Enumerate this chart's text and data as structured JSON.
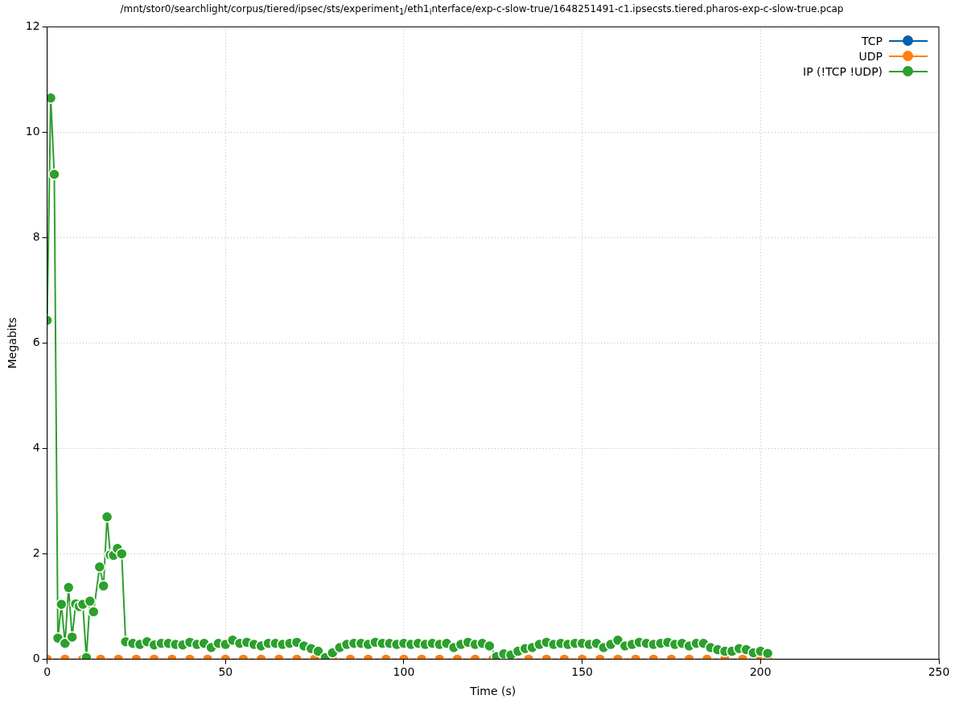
{
  "chart_data": {
    "type": "line",
    "title": "/mnt/stor0/searchlight/corpus/tiered/ipsec/sts/experiment$_{1}$/eth1$_{i}$nterface/exp-c-slow-true/1648251491-c1.ipsecsts.tiered.pharos-exp-c-slow-true.pcap",
    "xlabel": "Time (s)",
    "ylabel": "Megabits",
    "x": [
      0,
      5,
      10,
      15,
      20,
      25,
      30,
      35,
      40,
      45,
      50,
      55,
      60,
      65,
      70,
      75,
      80,
      85,
      90,
      95,
      100,
      105,
      110,
      115,
      120,
      125,
      130,
      135,
      140,
      145,
      150,
      155,
      160,
      165,
      170,
      175,
      180,
      185,
      190,
      195,
      200,
      202
    ],
    "xlim": [
      0,
      250
    ],
    "xticks": [
      0,
      50,
      100,
      150,
      200,
      250
    ],
    "ylim": [
      0,
      12
    ],
    "yticks": [
      0,
      2,
      4,
      6,
      8,
      10,
      12
    ],
    "grid": true,
    "legend": "top right",
    "marker": "circle",
    "line_style": "solid",
    "series": [
      {
        "name": "TCP",
        "color": "#0060ad",
        "values": [
          null,
          null,
          null,
          null,
          null,
          null,
          null,
          null,
          null,
          null,
          null,
          null,
          null,
          null,
          null,
          null,
          null,
          null,
          null,
          null,
          null,
          null,
          null,
          null,
          null,
          null,
          null,
          null,
          null,
          null,
          null,
          null,
          null,
          null,
          null,
          null,
          null,
          null,
          null,
          null,
          null,
          null
        ]
      },
      {
        "name": "UDP",
        "color": "#ff7f0e",
        "values": [
          0,
          0,
          0,
          0,
          0,
          0,
          0,
          0,
          0,
          0,
          0,
          0,
          0,
          0,
          0,
          0,
          0,
          0,
          0,
          0,
          0,
          0,
          0,
          0,
          0,
          0,
          0,
          0,
          0,
          0,
          0,
          0,
          0,
          0,
          0,
          0,
          0,
          0,
          0,
          0,
          0,
          0
        ]
      },
      {
        "name": "IP (!TCP  !UDP)",
        "color": "#2ca02c",
        "x": [
          0,
          1,
          2,
          3,
          4,
          5,
          6,
          7,
          8,
          9,
          10,
          11,
          12,
          13,
          14.7,
          15.8,
          16.8,
          17.7,
          18.6,
          19.7,
          20.9,
          22,
          24,
          26,
          28,
          30,
          32,
          34,
          36,
          38,
          40,
          42,
          44,
          46,
          48,
          50,
          52,
          54,
          56,
          58,
          60,
          62,
          64,
          66,
          68,
          70,
          72,
          74,
          76,
          78,
          80,
          82,
          84,
          86,
          88,
          90,
          92,
          94,
          96,
          98,
          100,
          102,
          104,
          106,
          108,
          110,
          112,
          114,
          116,
          118,
          120,
          122,
          124,
          126,
          128,
          130,
          132,
          134,
          136,
          138,
          140,
          142,
          144,
          146,
          148,
          150,
          152,
          154,
          156,
          158,
          160,
          162,
          164,
          166,
          168,
          170,
          172,
          174,
          176,
          178,
          180,
          182,
          184,
          186,
          188,
          190,
          192,
          194,
          196,
          198,
          200,
          202
        ],
        "values": [
          6.43,
          10.65,
          9.2,
          0.4,
          1.04,
          0.3,
          1.36,
          0.42,
          1.05,
          1.0,
          1.04,
          0.03,
          1.1,
          0.9,
          1.75,
          1.39,
          2.7,
          1.98,
          1.97,
          2.1,
          2.0,
          0.33,
          0.3,
          0.28,
          0.33,
          0.27,
          0.3,
          0.3,
          0.28,
          0.27,
          0.32,
          0.28,
          0.3,
          0.22,
          0.3,
          0.28,
          0.36,
          0.3,
          0.32,
          0.28,
          0.25,
          0.3,
          0.3,
          0.28,
          0.3,
          0.32,
          0.25,
          0.2,
          0.15,
          0.03,
          0.12,
          0.22,
          0.28,
          0.3,
          0.3,
          0.28,
          0.32,
          0.3,
          0.3,
          0.28,
          0.3,
          0.28,
          0.3,
          0.28,
          0.3,
          0.28,
          0.3,
          0.22,
          0.28,
          0.32,
          0.28,
          0.3,
          0.25,
          0.05,
          0.1,
          0.08,
          0.15,
          0.2,
          0.22,
          0.28,
          0.32,
          0.28,
          0.3,
          0.28,
          0.3,
          0.3,
          0.28,
          0.3,
          0.22,
          0.28,
          0.36,
          0.25,
          0.28,
          0.32,
          0.3,
          0.28,
          0.3,
          0.32,
          0.28,
          0.3,
          0.25,
          0.3,
          0.3,
          0.22,
          0.18,
          0.15,
          0.15,
          0.2,
          0.18,
          0.12,
          0.15,
          0.11
        ]
      }
    ]
  }
}
